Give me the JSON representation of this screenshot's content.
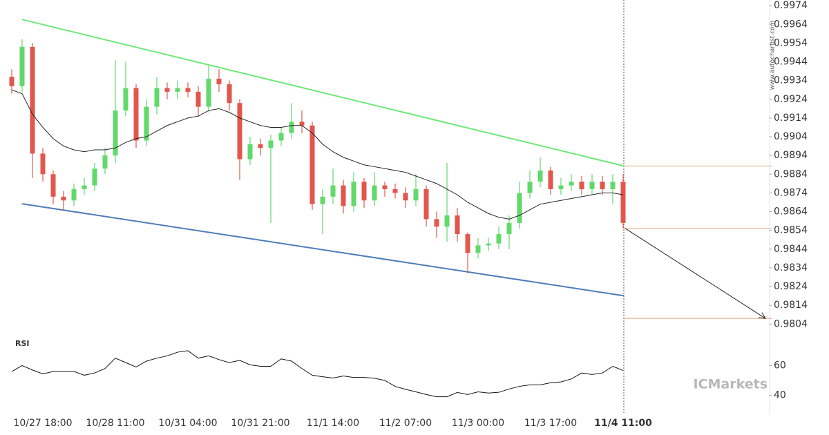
{
  "chart_data": {
    "type": "candlestick",
    "categories": [
      null,
      null,
      null,
      "10/27 18:00",
      null,
      null,
      null,
      null,
      null,
      null,
      "10/28 11:00",
      null,
      null,
      null,
      null,
      null,
      null,
      "10/31 04:00",
      null,
      null,
      null,
      null,
      null,
      null,
      "10/31 21:00",
      null,
      null,
      null,
      null,
      null,
      null,
      "11/1 14:00",
      null,
      null,
      null,
      null,
      null,
      null,
      "11/2 07:00",
      null,
      null,
      null,
      null,
      null,
      null,
      "11/3 00:00",
      null,
      null,
      null,
      null,
      null,
      null,
      "11/3 17:00",
      null,
      null,
      null,
      null,
      null,
      null,
      "11/4 11:00"
    ],
    "open": [
      0.9936,
      0.9931,
      0.9952,
      0.9895,
      0.9884,
      0.9872,
      0.987,
      0.9876,
      0.9878,
      0.9887,
      0.9894,
      0.9918,
      0.993,
      0.9902,
      0.992,
      0.993,
      0.9928,
      0.993,
      0.9928,
      0.992,
      0.9935,
      0.9932,
      0.9922,
      0.9892,
      0.99,
      0.9898,
      0.9902,
      0.9906,
      0.9912,
      0.991,
      0.9868,
      0.9872,
      0.9878,
      0.9867,
      0.988,
      0.987,
      0.9878,
      0.9876,
      0.9874,
      0.987,
      0.9876,
      0.986,
      0.9856,
      0.9862,
      0.9852,
      0.9842,
      0.9846,
      0.9847,
      0.9852,
      0.9858,
      0.9874,
      0.988,
      0.9886,
      0.9876,
      0.9878,
      0.988,
      0.9876,
      0.988,
      0.9876,
      0.988
    ],
    "high": [
      0.994,
      0.9956,
      0.9954,
      0.9898,
      0.9886,
      0.9875,
      0.9879,
      0.9882,
      0.989,
      0.9898,
      0.9945,
      0.9944,
      0.9932,
      0.9924,
      0.9936,
      0.9933,
      0.9934,
      0.9933,
      0.9931,
      0.9942,
      0.994,
      0.9934,
      0.9924,
      0.9904,
      0.9903,
      0.9905,
      0.9909,
      0.9922,
      0.9918,
      0.9912,
      0.9876,
      0.9887,
      0.9881,
      0.9885,
      0.9882,
      0.9885,
      0.988,
      0.9879,
      0.9877,
      0.9884,
      0.9878,
      0.9864,
      0.989,
      0.9866,
      0.9853,
      0.985,
      0.985,
      0.9856,
      0.9862,
      0.988,
      0.9886,
      0.9893,
      0.9888,
      0.9882,
      0.9884,
      0.9883,
      0.9884,
      0.9883,
      0.9884,
      0.9884
    ],
    "low": [
      0.9927,
      0.9928,
      0.9882,
      0.988,
      0.9868,
      0.9865,
      0.9867,
      0.9873,
      0.9875,
      0.9884,
      0.989,
      0.9915,
      0.9898,
      0.9899,
      0.9916,
      0.9924,
      0.9924,
      0.9925,
      0.9915,
      0.9917,
      0.9928,
      0.9918,
      0.9881,
      0.9889,
      0.9894,
      0.9858,
      0.9899,
      0.9903,
      0.9906,
      0.9865,
      0.9852,
      0.9868,
      0.9863,
      0.9864,
      0.9866,
      0.9867,
      0.9872,
      0.9871,
      0.9866,
      0.9867,
      0.9856,
      0.985,
      0.9848,
      0.9848,
      0.9831,
      0.9839,
      0.9843,
      0.9844,
      0.9844,
      0.9855,
      0.9871,
      0.9877,
      0.9873,
      0.9873,
      0.9875,
      0.9873,
      0.9873,
      0.9873,
      0.9868,
      0.9855
    ],
    "close": [
      0.9931,
      0.9952,
      0.9895,
      0.9884,
      0.9872,
      0.987,
      0.9876,
      0.9878,
      0.9887,
      0.9894,
      0.9918,
      0.993,
      0.9902,
      0.992,
      0.993,
      0.9928,
      0.993,
      0.9928,
      0.992,
      0.9935,
      0.9932,
      0.9922,
      0.9892,
      0.99,
      0.9898,
      0.9902,
      0.9906,
      0.9912,
      0.991,
      0.9868,
      0.9872,
      0.9878,
      0.9867,
      0.988,
      0.987,
      0.9878,
      0.9876,
      0.9874,
      0.987,
      0.9876,
      0.986,
      0.9856,
      0.9862,
      0.9852,
      0.9842,
      0.9846,
      0.9847,
      0.9852,
      0.9858,
      0.9874,
      0.988,
      0.9886,
      0.9876,
      0.9878,
      0.988,
      0.9876,
      0.988,
      0.9876,
      0.988,
      0.9858
    ],
    "moving_average": [
      0.9929,
      0.9927,
      0.9916,
      0.9909,
      0.9903,
      0.9899,
      0.9897,
      0.9896,
      0.9897,
      0.9897,
      0.9898,
      0.9901,
      0.9903,
      0.9904,
      0.9907,
      0.991,
      0.9912,
      0.9914,
      0.9915,
      0.9918,
      0.9919,
      0.9917,
      0.9914,
      0.9912,
      0.991,
      0.9909,
      0.9909,
      0.991,
      0.991,
      0.9906,
      0.99,
      0.9896,
      0.9893,
      0.9891,
      0.9889,
      0.9888,
      0.9887,
      0.9886,
      0.9885,
      0.9883,
      0.9881,
      0.9879,
      0.9876,
      0.9873,
      0.9869,
      0.9866,
      0.9863,
      0.9861,
      0.986,
      0.9862,
      0.9865,
      0.9868,
      0.9869,
      0.987,
      0.9871,
      0.9872,
      0.9873,
      0.9874,
      0.9874,
      0.9873
    ],
    "up_color": "#62d96b",
    "down_color": "#e2564c",
    "resistance": {
      "color": "#6ee878",
      "values": [
        0.99666,
        0.98884
      ]
    },
    "support": {
      "color": "#4d7cb8",
      "values": [
        0.98682,
        0.98191
      ]
    },
    "levels": {
      "color": "#e0a07a",
      "values": [
        0.98884,
        0.98549,
        0.9807
      ]
    },
    "ylim": [
      0.9796,
      0.9977
    ],
    "yticks": [
      0.9974,
      0.9964,
      0.9954,
      0.9944,
      0.9934,
      0.9924,
      0.9914,
      0.9904,
      0.9894,
      0.9884,
      0.9874,
      0.9864,
      0.9854,
      0.9844,
      0.9834,
      0.9824,
      0.9814,
      0.9804
    ],
    "rsi": {
      "label": "RSI",
      "values": [
        56,
        60,
        57,
        54.4,
        56,
        56,
        56,
        53.5,
        55,
        58,
        65,
        62,
        59,
        63,
        65,
        66.5,
        69,
        70,
        65,
        66.5,
        64,
        62,
        63.5,
        60.5,
        59.5,
        59.5,
        64.5,
        63,
        58,
        53.5,
        52.5,
        51.6,
        53,
        52,
        52,
        51.5,
        50,
        46,
        44,
        42.3,
        40.5,
        39,
        39,
        41.9,
        40.5,
        42.3,
        41.5,
        42,
        44.2,
        46,
        47,
        47,
        48.4,
        49,
        51,
        55,
        54,
        55,
        59.5,
        56.7
      ],
      "ylim": [
        30,
        76
      ],
      "yticks": [
        40,
        60
      ]
    },
    "watermark": "www.autochartist.com",
    "brand": "ICMarkets"
  }
}
